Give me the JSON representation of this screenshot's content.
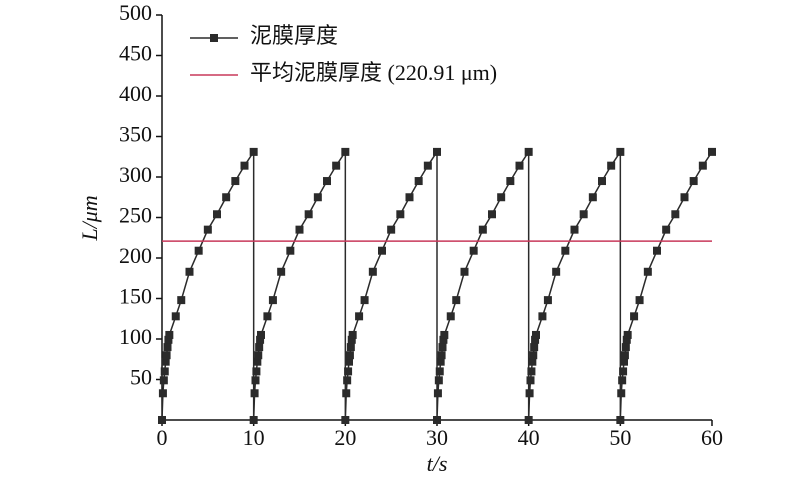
{
  "chart_data": {
    "type": "line",
    "xlabel": "t/s",
    "ylabel": "L/μm",
    "xlim": [
      0,
      60
    ],
    "xticks": [
      0,
      10,
      20,
      30,
      40,
      50,
      60
    ],
    "ylim": [
      0,
      500
    ],
    "yticks": [
      50,
      100,
      150,
      200,
      250,
      300,
      350,
      400,
      450,
      500
    ],
    "legend": "upper left",
    "series": [
      {
        "name": "泥膜厚度",
        "color": "#2b2b2b",
        "marker": "square",
        "x": [
          0,
          0.1,
          0.2,
          0.3,
          0.4,
          0.5,
          0.6,
          0.7,
          0.8,
          1.5,
          2.1,
          3,
          4,
          5,
          6,
          7,
          8,
          9,
          10,
          10,
          10.1,
          10.2,
          10.3,
          10.4,
          10.5,
          10.6,
          10.7,
          10.8,
          11.5,
          12.1,
          13,
          14,
          15,
          16,
          17,
          18,
          19,
          20,
          20,
          20.1,
          20.2,
          20.3,
          20.4,
          20.5,
          20.6,
          20.7,
          20.8,
          21.5,
          22.1,
          23,
          24,
          25,
          26,
          27,
          28,
          29,
          30,
          30,
          30.1,
          30.2,
          30.3,
          30.4,
          30.5,
          30.6,
          30.7,
          30.8,
          31.5,
          32.1,
          33,
          34,
          35,
          36,
          37,
          38,
          39,
          40,
          40,
          40.1,
          40.2,
          40.3,
          40.4,
          40.5,
          40.6,
          40.7,
          40.8,
          41.5,
          42.1,
          43,
          44,
          45,
          46,
          47,
          48,
          49,
          50,
          50,
          50.1,
          50.2,
          50.3,
          50.4,
          50.5,
          50.6,
          50.7,
          50.8,
          51.5,
          52.1,
          53,
          54,
          55,
          56,
          57,
          58,
          59,
          60
        ],
        "values": [
          0,
          33,
          49,
          60,
          72,
          80,
          90,
          99,
          105,
          128,
          148,
          183,
          209,
          235,
          254,
          275,
          295,
          314,
          331,
          0,
          33,
          49,
          60,
          72,
          80,
          90,
          99,
          105,
          128,
          148,
          183,
          209,
          235,
          254,
          275,
          295,
          314,
          331,
          0,
          33,
          49,
          60,
          72,
          80,
          90,
          99,
          105,
          128,
          148,
          183,
          209,
          235,
          254,
          275,
          295,
          314,
          331,
          0,
          33,
          49,
          60,
          72,
          80,
          90,
          99,
          105,
          128,
          148,
          183,
          209,
          235,
          254,
          275,
          295,
          314,
          331,
          0,
          33,
          49,
          60,
          72,
          80,
          90,
          99,
          105,
          128,
          148,
          183,
          209,
          235,
          254,
          275,
          295,
          314,
          331,
          0,
          33,
          49,
          60,
          72,
          80,
          90,
          99,
          105,
          128,
          148,
          183,
          209,
          235,
          254,
          275,
          295,
          314,
          331
        ]
      },
      {
        "name": "平均泥膜厚度 (220.91 μm)",
        "color": "#c8385a",
        "marker": "none",
        "x": [
          0,
          60
        ],
        "values": [
          220.91,
          220.91
        ]
      }
    ]
  }
}
